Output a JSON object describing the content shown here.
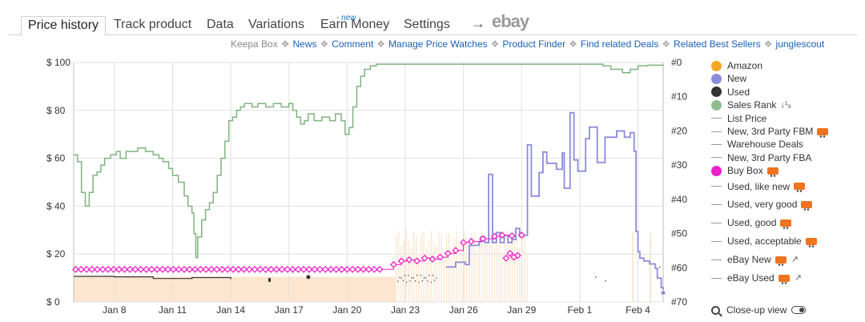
{
  "tabs": {
    "price_history": "Price history",
    "track_product": "Track product",
    "data": "Data",
    "variations": "Variations",
    "earn_money": "Earn Money",
    "new_badge": "- new -",
    "settings": "Settings",
    "arrow": "→",
    "ebay": "ebay"
  },
  "links": {
    "keepa_box": "Keepa Box",
    "news": "News",
    "comment": "Comment",
    "manage_price_watches": "Manage Price Watches",
    "product_finder": "Product Finder",
    "find_related_deals": "Find related Deals",
    "related_best_sellers": "Related Best Sellers",
    "junglescout": "junglescout",
    "separator": "❖"
  },
  "legend": {
    "items": [
      {
        "label": "Amazon",
        "kind": "dot",
        "color": "#f5a623"
      },
      {
        "label": "New",
        "kind": "dot",
        "color": "#8b8bdc"
      },
      {
        "label": "Used",
        "kind": "dot",
        "color": "#333333"
      },
      {
        "label": "Sales Rank",
        "kind": "dot",
        "color": "#8fbc8f",
        "extra": "sort-icon"
      },
      {
        "label": "List Price",
        "kind": "dash"
      },
      {
        "label": "New, 3rd Party FBM",
        "kind": "dash",
        "extra": "truck-icon"
      },
      {
        "label": "Warehouse Deals",
        "kind": "dash"
      },
      {
        "label": "New, 3rd Party FBA",
        "kind": "dash"
      },
      {
        "label": "Buy Box",
        "kind": "dot",
        "color": "#f01fc8",
        "extra": "truck-icon"
      },
      {
        "label": "Used, like new",
        "kind": "dash",
        "extra": "truck-icon"
      },
      {
        "label": "Used, very good",
        "kind": "dash",
        "extra": "truck-icon"
      },
      {
        "label": "Used, good",
        "kind": "dash",
        "extra": "truck-icon"
      },
      {
        "label": "Used, acceptable",
        "kind": "dash",
        "extra": "truck-icon"
      },
      {
        "label": "eBay New",
        "kind": "dash",
        "extra": "truck-external"
      },
      {
        "label": "eBay Used",
        "kind": "dash",
        "extra": "truck-external"
      }
    ],
    "closeup_label": "Close-up view"
  },
  "chart_data": {
    "type": "line",
    "x_tick_labels": [
      "Jan 8",
      "Jan 11",
      "Jan 14",
      "Jan 17",
      "Jan 20",
      "Jan 23",
      "Jan 26",
      "Jan 29",
      "Feb 1",
      "Feb 4"
    ],
    "x_tick_days": [
      8,
      11,
      14,
      17,
      20,
      23,
      26,
      29,
      32,
      35
    ],
    "xlim": [
      5.9,
      36.3
    ],
    "y_left_ticks": [
      "$ 0",
      "$ 20",
      "$ 40",
      "$ 60",
      "$ 80",
      "$ 100"
    ],
    "y_left_values": [
      0,
      20,
      40,
      60,
      80,
      100
    ],
    "ylim_left": [
      0,
      100
    ],
    "y_right_ticks": [
      "#0",
      "#10",
      "#20",
      "#30",
      "#40",
      "#50",
      "#60",
      "#70"
    ],
    "y_right_values": [
      0,
      10,
      20,
      30,
      40,
      50,
      60,
      70
    ],
    "ylim_right": [
      0,
      70
    ],
    "grid": true,
    "colors": {
      "sales_rank": "#7fb47f",
      "new": "#8b8bdc",
      "used": "#333333",
      "buy_box": "#f01fc8",
      "amazon_fill": "#fde6cf"
    },
    "series": [
      {
        "name": "Sales Rank",
        "axis": "right",
        "points": [
          [
            5.9,
            27
          ],
          [
            6.1,
            29
          ],
          [
            6.3,
            38
          ],
          [
            6.5,
            42
          ],
          [
            6.7,
            38
          ],
          [
            6.9,
            33
          ],
          [
            7.1,
            32
          ],
          [
            7.3,
            30
          ],
          [
            7.5,
            28
          ],
          [
            7.8,
            27
          ],
          [
            8.1,
            26
          ],
          [
            8.3,
            28
          ],
          [
            8.6,
            26
          ],
          [
            8.9,
            26
          ],
          [
            9.2,
            25
          ],
          [
            9.6,
            26
          ],
          [
            10.0,
            27
          ],
          [
            10.3,
            28
          ],
          [
            10.5,
            29
          ],
          [
            10.8,
            31
          ],
          [
            11.0,
            33
          ],
          [
            11.3,
            35
          ],
          [
            11.6,
            39
          ],
          [
            11.8,
            42
          ],
          [
            12.0,
            44
          ],
          [
            12.1,
            50
          ],
          [
            12.2,
            57
          ],
          [
            12.3,
            51
          ],
          [
            12.5,
            46
          ],
          [
            12.7,
            43
          ],
          [
            12.9,
            41
          ],
          [
            13.1,
            38
          ],
          [
            13.3,
            33
          ],
          [
            13.5,
            28
          ],
          [
            13.7,
            23
          ],
          [
            13.9,
            17
          ],
          [
            14.1,
            16
          ],
          [
            14.3,
            14
          ],
          [
            14.5,
            13
          ],
          [
            14.7,
            12
          ],
          [
            15.1,
            13
          ],
          [
            15.4,
            12
          ],
          [
            15.8,
            13
          ],
          [
            16.2,
            12
          ],
          [
            16.6,
            13
          ],
          [
            17.0,
            12
          ],
          [
            17.2,
            14
          ],
          [
            17.4,
            16
          ],
          [
            17.6,
            18
          ],
          [
            17.8,
            17
          ],
          [
            18.0,
            15
          ],
          [
            18.3,
            17
          ],
          [
            18.7,
            16
          ],
          [
            19.1,
            17
          ],
          [
            19.4,
            15
          ],
          [
            19.7,
            17
          ],
          [
            19.9,
            21
          ],
          [
            20.1,
            19
          ],
          [
            20.3,
            13
          ],
          [
            20.5,
            7
          ],
          [
            20.7,
            4
          ],
          [
            20.9,
            2
          ],
          [
            21.2,
            1
          ],
          [
            21.5,
            0.5
          ],
          [
            22.0,
            0.5
          ],
          [
            24.0,
            0.5
          ],
          [
            26.0,
            0.5
          ],
          [
            28.0,
            0.5
          ],
          [
            30.0,
            0.5
          ],
          [
            32.0,
            0.5
          ],
          [
            33.0,
            0.5
          ],
          [
            33.2,
            1
          ],
          [
            33.6,
            2
          ],
          [
            34.2,
            3
          ],
          [
            34.6,
            2
          ],
          [
            35.0,
            1
          ],
          [
            35.5,
            0.8
          ],
          [
            36.3,
            1
          ]
        ]
      },
      {
        "name": "New",
        "axis": "left",
        "points": [
          [
            25.1,
            14.6
          ],
          [
            25.6,
            16.6
          ],
          [
            26.1,
            15.6
          ],
          [
            26.3,
            23.6
          ],
          [
            26.8,
            25.1
          ],
          [
            26.9,
            27.2
          ],
          [
            27.1,
            24.8
          ],
          [
            27.3,
            53.3
          ],
          [
            27.5,
            24.8
          ],
          [
            27.7,
            29.0
          ],
          [
            27.9,
            24.8
          ],
          [
            28.1,
            27.8
          ],
          [
            28.3,
            24.8
          ],
          [
            28.5,
            26.1
          ],
          [
            28.7,
            30.7
          ],
          [
            28.9,
            27.3
          ],
          [
            29.1,
            27.9
          ],
          [
            29.3,
            65.6
          ],
          [
            29.5,
            44.2
          ],
          [
            29.9,
            54.0
          ],
          [
            30.1,
            62.6
          ],
          [
            30.3,
            57.9
          ],
          [
            30.8,
            55.4
          ],
          [
            31.1,
            62.2
          ],
          [
            31.2,
            47.5
          ],
          [
            31.5,
            79.0
          ],
          [
            31.7,
            59.3
          ],
          [
            31.9,
            54.6
          ],
          [
            32.3,
            68.2
          ],
          [
            32.5,
            73.0
          ],
          [
            32.9,
            58.2
          ],
          [
            33.3,
            68.8
          ],
          [
            33.9,
            71.4
          ],
          [
            34.1,
            71.4
          ],
          [
            34.3,
            68.8
          ],
          [
            34.6,
            70.7
          ],
          [
            34.8,
            62.9
          ],
          [
            34.9,
            29.4
          ],
          [
            35.0,
            21.0
          ],
          [
            35.1,
            18.3
          ],
          [
            35.3,
            17.1
          ],
          [
            35.6,
            15.9
          ],
          [
            35.9,
            14.0
          ],
          [
            36.0,
            10.0
          ],
          [
            36.2,
            6.0
          ],
          [
            36.3,
            3.8
          ]
        ]
      },
      {
        "name": "Used",
        "axis": "left",
        "points": [
          [
            5.9,
            10.7
          ],
          [
            8.0,
            10.5
          ],
          [
            10.0,
            9.8
          ],
          [
            12.0,
            10.2
          ],
          [
            14.0,
            9.5
          ],
          [
            16.0,
            10.0
          ],
          [
            18.0,
            10.4
          ],
          [
            20.0,
            10.0
          ],
          [
            22.5,
            10.0
          ],
          [
            34.9,
            67.0
          ],
          [
            35.2,
            63.8
          ]
        ]
      },
      {
        "name": "Buy Box",
        "axis": "left",
        "points": [
          [
            6.0,
            13.6
          ],
          [
            6.8,
            13.6
          ],
          [
            7.6,
            13.6
          ],
          [
            8.4,
            13.6
          ],
          [
            9.2,
            13.6
          ],
          [
            10.0,
            13.6
          ],
          [
            10.8,
            13.6
          ],
          [
            11.6,
            13.6
          ],
          [
            12.4,
            13.6
          ],
          [
            13.2,
            13.6
          ],
          [
            14.0,
            13.6
          ],
          [
            14.8,
            13.6
          ],
          [
            15.6,
            13.6
          ],
          [
            16.4,
            13.6
          ],
          [
            17.2,
            13.6
          ],
          [
            18.0,
            13.6
          ],
          [
            18.8,
            13.6
          ],
          [
            19.6,
            13.6
          ],
          [
            20.4,
            13.6
          ],
          [
            21.2,
            13.6
          ],
          [
            22.0,
            13.6
          ],
          [
            22.4,
            15.6
          ],
          [
            22.8,
            17.1
          ],
          [
            23.2,
            17.6
          ],
          [
            23.6,
            17.1
          ],
          [
            24.0,
            18.3
          ],
          [
            24.4,
            17.9
          ],
          [
            24.8,
            18.7
          ],
          [
            25.2,
            20.3
          ],
          [
            25.6,
            21.5
          ],
          [
            26.0,
            24.8
          ],
          [
            26.4,
            25.3
          ],
          [
            27.0,
            26.4
          ],
          [
            27.6,
            27.4
          ],
          [
            28.0,
            27.9
          ],
          [
            28.5,
            27.6
          ],
          [
            29.0,
            27.9
          ],
          [
            28.2,
            18.3
          ],
          [
            28.4,
            20.3
          ],
          [
            28.6,
            18.7
          ],
          [
            28.8,
            19.4
          ]
        ]
      }
    ]
  }
}
